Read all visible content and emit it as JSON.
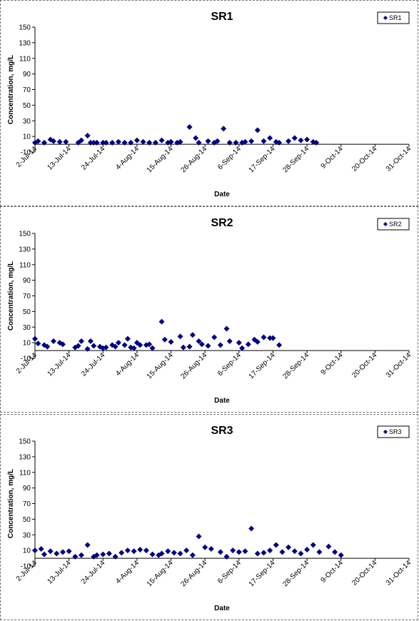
{
  "chart_data": [
    {
      "type": "scatter",
      "title": "SR1",
      "xlabel": "Date",
      "ylabel": "Concentration, mg/L",
      "ylim": [
        -10,
        150
      ],
      "yticks": [
        "-10",
        "10",
        "30",
        "50",
        "70",
        "90",
        "110",
        "130",
        "150"
      ],
      "xlim": [
        "2-Jul-14",
        "31-Oct-14"
      ],
      "xticks": [
        "2-Jul-14",
        "13-Jul-14",
        "24-Jul-14",
        "4-Aug-14",
        "15-Aug-14",
        "26-Aug-14",
        "6-Sep-14",
        "17-Sep-14",
        "28-Sep-14",
        "9-Oct-14",
        "20-Oct-14",
        "31-Oct-14"
      ],
      "grid": false,
      "legend_position": "top-right",
      "marker_color": "#000080",
      "series": [
        {
          "name": "SR1",
          "points": [
            [
              "2-Jul-14",
              2
            ],
            [
              "3-Jul-14",
              4
            ],
            [
              "5-Jul-14",
              2
            ],
            [
              "7-Jul-14",
              6
            ],
            [
              "8-Jul-14",
              4
            ],
            [
              "10-Jul-14",
              3
            ],
            [
              "12-Jul-14",
              3
            ],
            [
              "16-Jul-14",
              2
            ],
            [
              "17-Jul-14",
              5
            ],
            [
              "19-Jul-14",
              11
            ],
            [
              "20-Jul-14",
              2
            ],
            [
              "21-Jul-14",
              2
            ],
            [
              "22-Jul-14",
              2
            ],
            [
              "24-Jul-14",
              2
            ],
            [
              "25-Jul-14",
              2
            ],
            [
              "27-Jul-14",
              2
            ],
            [
              "29-Jul-14",
              3
            ],
            [
              "31-Jul-14",
              2
            ],
            [
              "2-Aug-14",
              2
            ],
            [
              "4-Aug-14",
              5
            ],
            [
              "6-Aug-14",
              3
            ],
            [
              "8-Aug-14",
              2
            ],
            [
              "10-Aug-14",
              2
            ],
            [
              "12-Aug-14",
              5
            ],
            [
              "14-Aug-14",
              2
            ],
            [
              "15-Aug-14",
              3
            ],
            [
              "17-Aug-14",
              2
            ],
            [
              "18-Aug-14",
              3
            ],
            [
              "21-Aug-14",
              22
            ],
            [
              "23-Aug-14",
              8
            ],
            [
              "24-Aug-14",
              2
            ],
            [
              "27-Aug-14",
              4
            ],
            [
              "29-Aug-14",
              2
            ],
            [
              "30-Aug-14",
              4
            ],
            [
              "1-Sep-14",
              20
            ],
            [
              "3-Sep-14",
              2
            ],
            [
              "5-Sep-14",
              2
            ],
            [
              "7-Sep-14",
              2
            ],
            [
              "8-Sep-14",
              3
            ],
            [
              "10-Sep-14",
              4
            ],
            [
              "12-Sep-14",
              18
            ],
            [
              "14-Sep-14",
              4
            ],
            [
              "16-Sep-14",
              8
            ],
            [
              "18-Sep-14",
              3
            ],
            [
              "19-Sep-14",
              2
            ],
            [
              "22-Sep-14",
              4
            ],
            [
              "24-Sep-14",
              8
            ],
            [
              "26-Sep-14",
              5
            ],
            [
              "28-Sep-14",
              6
            ],
            [
              "30-Sep-14",
              3
            ],
            [
              "1-Oct-14",
              2
            ]
          ]
        }
      ]
    },
    {
      "type": "scatter",
      "title": "SR2",
      "xlabel": "Date",
      "ylabel": "Concentration, mg/L",
      "ylim": [
        -10,
        150
      ],
      "yticks": [
        "-10",
        "10",
        "30",
        "50",
        "70",
        "90",
        "110",
        "130",
        "150"
      ],
      "xlim": [
        "2-Jul-14",
        "31-Oct-14"
      ],
      "xticks": [
        "2-Jul-14",
        "13-Jul-14",
        "24-Jul-14",
        "4-Aug-14",
        "15-Aug-14",
        "26-Aug-14",
        "6-Sep-14",
        "17-Sep-14",
        "28-Sep-14",
        "9-Oct-14",
        "20-Oct-14",
        "31-Oct-14"
      ],
      "grid": false,
      "legend_position": "top-right",
      "marker_color": "#000080",
      "series": [
        {
          "name": "SR2",
          "points": [
            [
              "2-Jul-14",
              15
            ],
            [
              "3-Jul-14",
              9
            ],
            [
              "5-Jul-14",
              7
            ],
            [
              "6-Jul-14",
              5
            ],
            [
              "8-Jul-14",
              12
            ],
            [
              "10-Jul-14",
              10
            ],
            [
              "11-Jul-14",
              8
            ],
            [
              "15-Jul-14",
              4
            ],
            [
              "16-Jul-14",
              6
            ],
            [
              "17-Jul-14",
              12
            ],
            [
              "19-Jul-14",
              2
            ],
            [
              "20-Jul-14",
              12
            ],
            [
              "21-Jul-14",
              6
            ],
            [
              "23-Jul-14",
              5
            ],
            [
              "24-Jul-14",
              3
            ],
            [
              "25-Jul-14",
              4
            ],
            [
              "27-Jul-14",
              7
            ],
            [
              "28-Jul-14",
              5
            ],
            [
              "29-Jul-14",
              10
            ],
            [
              "31-Jul-14",
              7
            ],
            [
              "1-Aug-14",
              15
            ],
            [
              "2-Aug-14",
              4
            ],
            [
              "3-Aug-14",
              3
            ],
            [
              "4-Aug-14",
              10
            ],
            [
              "5-Aug-14",
              7
            ],
            [
              "7-Aug-14",
              7
            ],
            [
              "8-Aug-14",
              8
            ],
            [
              "9-Aug-14",
              3
            ],
            [
              "12-Aug-14",
              37
            ],
            [
              "13-Aug-14",
              14
            ],
            [
              "15-Aug-14",
              11
            ],
            [
              "18-Aug-14",
              18
            ],
            [
              "19-Aug-14",
              4
            ],
            [
              "21-Aug-14",
              5
            ],
            [
              "22-Aug-14",
              20
            ],
            [
              "24-Aug-14",
              12
            ],
            [
              "25-Aug-14",
              8
            ],
            [
              "27-Aug-14",
              6
            ],
            [
              "29-Aug-14",
              17
            ],
            [
              "31-Aug-14",
              7
            ],
            [
              "2-Sep-14",
              28
            ],
            [
              "3-Sep-14",
              12
            ],
            [
              "6-Sep-14",
              10
            ],
            [
              "7-Sep-14",
              3
            ],
            [
              "9-Sep-14",
              8
            ],
            [
              "11-Sep-14",
              14
            ],
            [
              "12-Sep-14",
              11
            ],
            [
              "14-Sep-14",
              17
            ],
            [
              "16-Sep-14",
              16
            ],
            [
              "17-Sep-14",
              16
            ],
            [
              "19-Sep-14",
              7
            ]
          ]
        }
      ]
    },
    {
      "type": "scatter",
      "title": "SR3",
      "xlabel": "Date",
      "ylabel": "Concentration, mg/L",
      "ylim": [
        -10,
        150
      ],
      "yticks": [
        "-10",
        "10",
        "30",
        "50",
        "70",
        "90",
        "110",
        "130",
        "150"
      ],
      "xlim": [
        "2-Jul-14",
        "31-Oct-14"
      ],
      "xticks": [
        "2-Jul-14",
        "13-Jul-14",
        "24-Jul-14",
        "4-Aug-14",
        "15-Aug-14",
        "26-Aug-14",
        "6-Sep-14",
        "17-Sep-14",
        "28-Sep-14",
        "9-Oct-14",
        "20-Oct-14",
        "31-Oct-14"
      ],
      "grid": false,
      "legend_position": "top-right",
      "marker_color": "#000080",
      "series": [
        {
          "name": "SR3",
          "points": [
            [
              "2-Jul-14",
              10
            ],
            [
              "4-Jul-14",
              12
            ],
            [
              "5-Jul-14",
              5
            ],
            [
              "7-Jul-14",
              9
            ],
            [
              "9-Jul-14",
              6
            ],
            [
              "11-Jul-14",
              8
            ],
            [
              "13-Jul-14",
              9
            ],
            [
              "15-Jul-14",
              2
            ],
            [
              "17-Jul-14",
              4
            ],
            [
              "19-Jul-14",
              17
            ],
            [
              "21-Jul-14",
              2
            ],
            [
              "22-Jul-14",
              4
            ],
            [
              "24-Jul-14",
              5
            ],
            [
              "26-Jul-14",
              6
            ],
            [
              "28-Jul-14",
              2
            ],
            [
              "30-Jul-14",
              7
            ],
            [
              "1-Aug-14",
              10
            ],
            [
              "3-Aug-14",
              9
            ],
            [
              "5-Aug-14",
              11
            ],
            [
              "7-Aug-14",
              10
            ],
            [
              "9-Aug-14",
              5
            ],
            [
              "11-Aug-14",
              4
            ],
            [
              "12-Aug-14",
              6
            ],
            [
              "14-Aug-14",
              9
            ],
            [
              "16-Aug-14",
              7
            ],
            [
              "18-Aug-14",
              6
            ],
            [
              "20-Aug-14",
              10
            ],
            [
              "22-Aug-14",
              4
            ],
            [
              "24-Aug-14",
              28
            ],
            [
              "26-Aug-14",
              14
            ],
            [
              "28-Aug-14",
              12
            ],
            [
              "31-Aug-14",
              8
            ],
            [
              "2-Sep-14",
              2
            ],
            [
              "4-Sep-14",
              10
            ],
            [
              "6-Sep-14",
              8
            ],
            [
              "8-Sep-14",
              9
            ],
            [
              "10-Sep-14",
              38
            ],
            [
              "12-Sep-14",
              6
            ],
            [
              "14-Sep-14",
              7
            ],
            [
              "16-Sep-14",
              10
            ],
            [
              "18-Sep-14",
              17
            ],
            [
              "20-Sep-14",
              8
            ],
            [
              "22-Sep-14",
              14
            ],
            [
              "24-Sep-14",
              9
            ],
            [
              "26-Sep-14",
              6
            ],
            [
              "28-Sep-14",
              11
            ],
            [
              "30-Sep-14",
              17
            ],
            [
              "2-Oct-14",
              8
            ],
            [
              "5-Oct-14",
              15
            ],
            [
              "7-Oct-14",
              8
            ],
            [
              "9-Oct-14",
              4
            ]
          ]
        }
      ]
    }
  ]
}
